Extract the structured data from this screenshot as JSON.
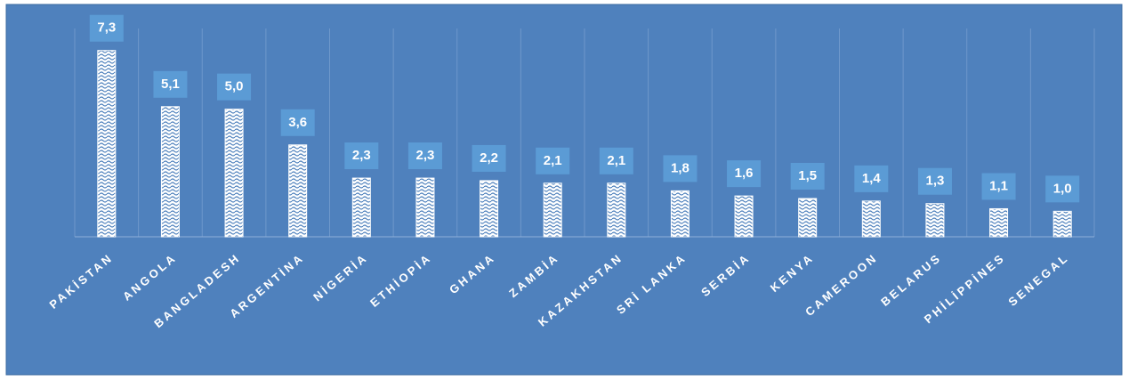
{
  "chart_data": {
    "type": "bar",
    "categories": [
      "PAKİSTAN",
      "ANGOLA",
      "BANGLADESH",
      "ARGENTİNA",
      "NİGERİA",
      "ETHİOPİA",
      "GHANA",
      "ZAMBİA",
      "KAZAKHSTAN",
      "SRİ LANKA",
      "SERBİA",
      "KENYA",
      "CAMEROON",
      "BELARUS",
      "PHİLİPPİNES",
      "SENEGAL"
    ],
    "values": [
      7.3,
      5.1,
      5.0,
      3.6,
      2.3,
      2.3,
      2.2,
      2.1,
      2.1,
      1.8,
      1.6,
      1.5,
      1.4,
      1.3,
      1.1,
      1.0
    ],
    "value_labels": [
      "7,3",
      "5,1",
      "5,0",
      "3,6",
      "2,3",
      "2,3",
      "2,2",
      "2,1",
      "2,1",
      "1,8",
      "1,6",
      "1,5",
      "1,4",
      "1,3",
      "1,1",
      "1,0"
    ],
    "color": "#4a7ebb",
    "ylim": [
      0,
      9
    ],
    "grid": true
  }
}
